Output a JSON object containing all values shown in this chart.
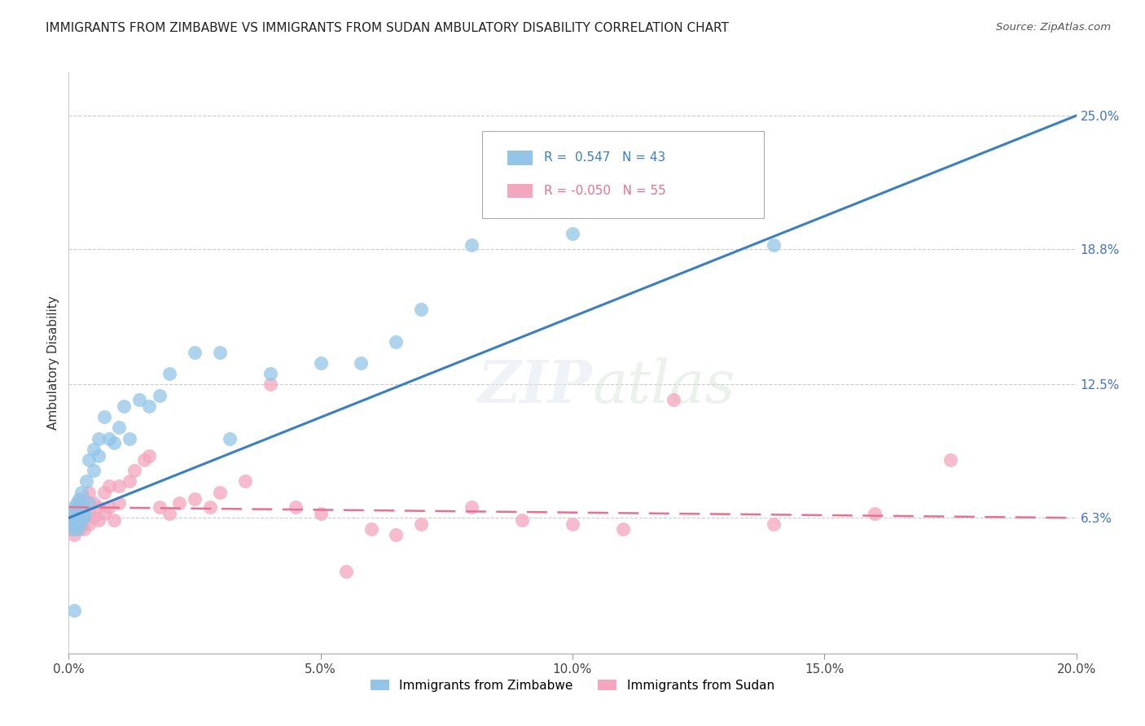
{
  "title": "IMMIGRANTS FROM ZIMBABWE VS IMMIGRANTS FROM SUDAN AMBULATORY DISABILITY CORRELATION CHART",
  "source": "Source: ZipAtlas.com",
  "ylabel": "Ambulatory Disability",
  "xlabel_ticks": [
    "0.0%",
    "5.0%",
    "10.0%",
    "15.0%",
    "20.0%"
  ],
  "xlabel_tick_vals": [
    0.0,
    0.05,
    0.1,
    0.15,
    0.2
  ],
  "ylabel_ticks": [
    "6.3%",
    "12.5%",
    "18.8%",
    "25.0%"
  ],
  "ylabel_tick_vals": [
    0.063,
    0.125,
    0.188,
    0.25
  ],
  "xlim": [
    0.0,
    0.2
  ],
  "ylim": [
    0.0,
    0.27
  ],
  "zimbabwe_color": "#92C5E8",
  "sudan_color": "#F4A6BE",
  "zimbabwe_line_color": "#3A7FC1",
  "sudan_line_color": "#E87090",
  "zimbabwe_R": 0.547,
  "zimbabwe_N": 43,
  "sudan_R": -0.05,
  "sudan_N": 55,
  "legend_label_zimbabwe": "Immigrants from Zimbabwe",
  "legend_label_sudan": "Immigrants from Sudan",
  "grid_color": "#CCCCCC",
  "right_label_color": "#4472C4",
  "zimbabwe_x": [
    0.0005,
    0.0008,
    0.001,
    0.001,
    0.0013,
    0.0015,
    0.0018,
    0.002,
    0.002,
    0.0022,
    0.0025,
    0.003,
    0.003,
    0.0032,
    0.0035,
    0.004,
    0.004,
    0.005,
    0.005,
    0.006,
    0.006,
    0.007,
    0.008,
    0.009,
    0.01,
    0.011,
    0.012,
    0.014,
    0.016,
    0.018,
    0.02,
    0.025,
    0.03,
    0.032,
    0.04,
    0.05,
    0.058,
    0.065,
    0.07,
    0.08,
    0.1,
    0.14,
    0.001
  ],
  "zimbabwe_y": [
    0.06,
    0.058,
    0.063,
    0.068,
    0.065,
    0.07,
    0.058,
    0.062,
    0.072,
    0.06,
    0.075,
    0.063,
    0.068,
    0.065,
    0.08,
    0.07,
    0.09,
    0.085,
    0.095,
    0.092,
    0.1,
    0.11,
    0.1,
    0.098,
    0.105,
    0.115,
    0.1,
    0.118,
    0.115,
    0.12,
    0.13,
    0.14,
    0.14,
    0.1,
    0.13,
    0.135,
    0.135,
    0.145,
    0.16,
    0.19,
    0.195,
    0.19,
    0.02
  ],
  "sudan_x": [
    0.0003,
    0.0005,
    0.0008,
    0.001,
    0.001,
    0.0012,
    0.0015,
    0.0018,
    0.002,
    0.002,
    0.002,
    0.0025,
    0.003,
    0.003,
    0.003,
    0.004,
    0.004,
    0.004,
    0.005,
    0.005,
    0.006,
    0.006,
    0.007,
    0.007,
    0.008,
    0.008,
    0.009,
    0.01,
    0.01,
    0.012,
    0.013,
    0.015,
    0.016,
    0.018,
    0.02,
    0.022,
    0.025,
    0.028,
    0.03,
    0.035,
    0.04,
    0.045,
    0.05,
    0.055,
    0.06,
    0.065,
    0.07,
    0.08,
    0.09,
    0.1,
    0.11,
    0.12,
    0.14,
    0.16,
    0.175
  ],
  "sudan_y": [
    0.06,
    0.058,
    0.062,
    0.055,
    0.065,
    0.06,
    0.063,
    0.068,
    0.058,
    0.062,
    0.07,
    0.06,
    0.058,
    0.065,
    0.072,
    0.06,
    0.065,
    0.075,
    0.063,
    0.07,
    0.062,
    0.068,
    0.065,
    0.075,
    0.068,
    0.078,
    0.062,
    0.07,
    0.078,
    0.08,
    0.085,
    0.09,
    0.092,
    0.068,
    0.065,
    0.07,
    0.072,
    0.068,
    0.075,
    0.08,
    0.125,
    0.068,
    0.065,
    0.038,
    0.058,
    0.055,
    0.06,
    0.068,
    0.062,
    0.06,
    0.058,
    0.118,
    0.06,
    0.065,
    0.09
  ]
}
